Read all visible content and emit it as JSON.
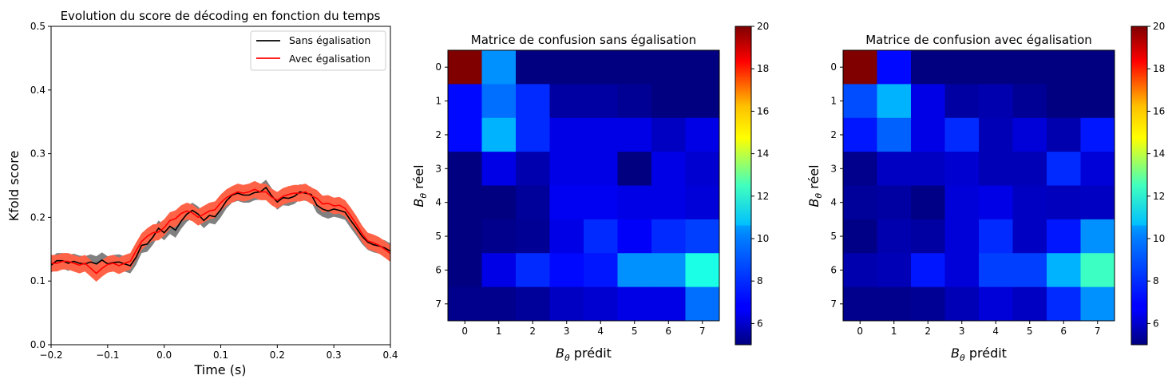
{
  "chart_data": [
    {
      "type": "line",
      "title": "Evolution du score de décoding en fonction du temps",
      "xlabel": "Time (s)",
      "ylabel": "Kfold score",
      "xlim": [
        -0.2,
        0.4
      ],
      "ylim": [
        0.0,
        0.5
      ],
      "xticks": [
        "-0.2",
        "-0.1",
        "0.0",
        "0.1",
        "0.2",
        "0.3",
        "0.4"
      ],
      "yticks": [
        "0.0",
        "0.1",
        "0.2",
        "0.3",
        "0.4",
        "0.5"
      ],
      "legend_position": "top-right",
      "grid": false,
      "x": [
        -0.2,
        -0.19,
        -0.18,
        -0.17,
        -0.16,
        -0.15,
        -0.14,
        -0.13,
        -0.12,
        -0.11,
        -0.1,
        -0.09,
        -0.08,
        -0.07,
        -0.06,
        -0.05,
        -0.04,
        -0.03,
        -0.02,
        -0.01,
        0.0,
        0.01,
        0.02,
        0.03,
        0.04,
        0.05,
        0.06,
        0.07,
        0.08,
        0.09,
        0.1,
        0.11,
        0.12,
        0.13,
        0.14,
        0.15,
        0.16,
        0.17,
        0.18,
        0.19,
        0.2,
        0.21,
        0.22,
        0.23,
        0.24,
        0.25,
        0.26,
        0.27,
        0.28,
        0.29,
        0.3,
        0.31,
        0.32,
        0.33,
        0.34,
        0.35,
        0.36,
        0.37,
        0.38,
        0.39,
        0.4
      ],
      "series": [
        {
          "name": "Sans égalisation",
          "color": "#000000",
          "band_color": "#808080",
          "band_halfwidth": 0.012,
          "values": [
            0.125,
            0.132,
            0.132,
            0.128,
            0.131,
            0.128,
            0.127,
            0.13,
            0.127,
            0.133,
            0.127,
            0.129,
            0.13,
            0.127,
            0.124,
            0.137,
            0.156,
            0.158,
            0.169,
            0.183,
            0.176,
            0.186,
            0.18,
            0.194,
            0.205,
            0.211,
            0.205,
            0.195,
            0.203,
            0.201,
            0.212,
            0.226,
            0.235,
            0.238,
            0.235,
            0.235,
            0.239,
            0.24,
            0.247,
            0.234,
            0.224,
            0.231,
            0.23,
            0.233,
            0.24,
            0.238,
            0.236,
            0.219,
            0.213,
            0.21,
            0.213,
            0.211,
            0.208,
            0.195,
            0.183,
            0.17,
            0.161,
            0.157,
            0.155,
            0.152,
            0.147
          ]
        },
        {
          "name": "Avec égalisation",
          "color": "#ff0000",
          "band_color": "#ff6347",
          "band_halfwidth": 0.013,
          "values": [
            0.128,
            0.128,
            0.131,
            0.131,
            0.128,
            0.125,
            0.128,
            0.12,
            0.112,
            0.12,
            0.126,
            0.128,
            0.124,
            0.128,
            0.131,
            0.147,
            0.162,
            0.17,
            0.176,
            0.177,
            0.184,
            0.195,
            0.198,
            0.206,
            0.21,
            0.207,
            0.2,
            0.205,
            0.21,
            0.212,
            0.223,
            0.231,
            0.236,
            0.24,
            0.238,
            0.24,
            0.244,
            0.24,
            0.24,
            0.232,
            0.227,
            0.233,
            0.236,
            0.238,
            0.238,
            0.24,
            0.234,
            0.23,
            0.221,
            0.222,
            0.218,
            0.219,
            0.214,
            0.202,
            0.189,
            0.174,
            0.163,
            0.16,
            0.156,
            0.15,
            0.143
          ]
        }
      ]
    },
    {
      "type": "heatmap",
      "title": "Matrice de confusion sans égalisation",
      "xlabel_main": "B",
      "xlabel_sub": "θ",
      "xlabel_rest": " prédit",
      "ylabel_main": "B",
      "ylabel_sub": "θ",
      "ylabel_rest": " réel",
      "categories": [
        "0",
        "1",
        "2",
        "3",
        "4",
        "5",
        "6",
        "7"
      ],
      "colormap": "jet",
      "vmin": 5,
      "vmax": 20,
      "colorbar_ticks": [
        "6",
        "8",
        "10",
        "12",
        "14",
        "16",
        "18",
        "20"
      ],
      "values": [
        [
          20,
          9,
          5,
          5,
          5,
          5,
          5,
          5
        ],
        [
          7,
          8.5,
          7.5,
          5.5,
          5.5,
          5.3,
          5,
          5
        ],
        [
          7,
          9.5,
          7.5,
          6.5,
          6.5,
          6.5,
          6,
          6.5
        ],
        [
          5,
          6.5,
          5.7,
          6.5,
          6.5,
          5,
          6.5,
          6.2
        ],
        [
          5,
          5,
          5.4,
          6.7,
          6.7,
          6.5,
          6.5,
          6.3
        ],
        [
          5,
          5.2,
          5.3,
          6.5,
          7.5,
          6.8,
          7.5,
          7.8
        ],
        [
          5,
          6.5,
          7.5,
          7,
          7.2,
          9,
          9,
          11
        ],
        [
          5.2,
          5.2,
          5.4,
          6,
          6.2,
          6.5,
          6.5,
          8.5
        ]
      ]
    },
    {
      "type": "heatmap",
      "title": "Matrice de confusion avec égalisation",
      "xlabel_main": "B",
      "xlabel_sub": "θ",
      "xlabel_rest": " prédit",
      "ylabel_main": "B",
      "ylabel_sub": "θ",
      "ylabel_rest": " réel",
      "categories": [
        "0",
        "1",
        "2",
        "3",
        "4",
        "5",
        "6",
        "7"
      ],
      "colormap": "jet",
      "vmin": 5,
      "vmax": 20,
      "colorbar_ticks": [
        "6",
        "8",
        "10",
        "12",
        "14",
        "16",
        "18",
        "20"
      ],
      "values": [
        [
          20,
          7,
          5,
          5,
          5,
          5,
          5,
          5
        ],
        [
          8,
          9.5,
          6.5,
          5.5,
          5.7,
          5.3,
          5,
          5
        ],
        [
          7.2,
          8.3,
          6.5,
          7.5,
          5.8,
          6.3,
          5.7,
          7.2
        ],
        [
          5.2,
          6,
          6,
          6.2,
          5.8,
          5.8,
          7.5,
          6.3
        ],
        [
          5.4,
          5.5,
          5.1,
          6.3,
          6.5,
          6,
          5.9,
          6
        ],
        [
          5.1,
          5.7,
          5.5,
          6.3,
          7.5,
          6,
          7.2,
          9
        ],
        [
          5.7,
          5.8,
          7.2,
          6.3,
          7.8,
          7.8,
          9.5,
          11.5
        ],
        [
          5.2,
          5.2,
          5.3,
          5.8,
          6.3,
          6,
          7.5,
          9
        ]
      ]
    }
  ]
}
